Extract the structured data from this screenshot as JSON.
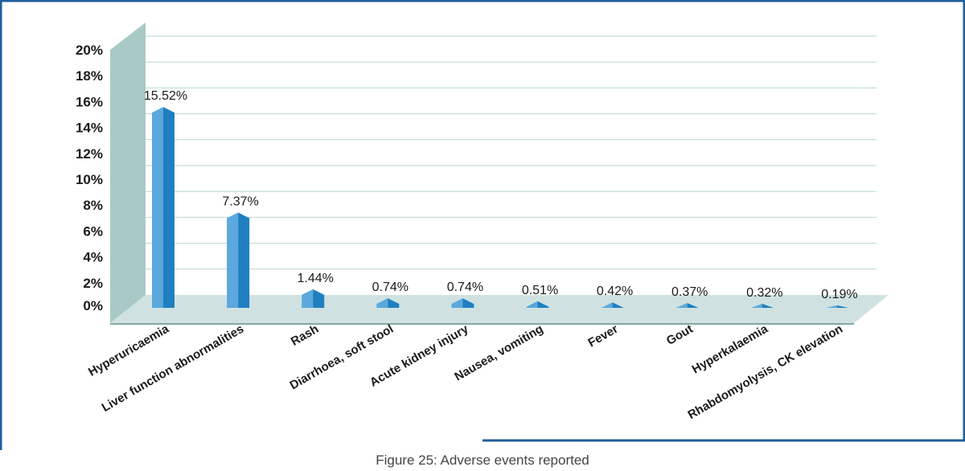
{
  "caption": "Figure 25: Adverse events reported",
  "colors": {
    "frame": "#1f5f9e",
    "wall": "#a9c9c6",
    "floor": "#cfe2e1",
    "wall_dark": "#7fa8a4",
    "grid": "#b8d6d4",
    "bar_light": "#5aa8dd",
    "bar_dark": "#1f7fc1"
  },
  "chart_data": {
    "type": "bar",
    "title": "",
    "xlabel": "",
    "ylabel": "",
    "ylim": [
      0,
      20
    ],
    "yticks": [
      "0%",
      "2%",
      "4%",
      "6%",
      "8%",
      "10%",
      "12%",
      "14%",
      "16%",
      "18%",
      "20%"
    ],
    "categories": [
      "Hyperuricaemia",
      "Liver function abnormalities",
      "Rash",
      "Diarrhoea, soft stool",
      "Acute kidney injury",
      "Nausea, vomiting",
      "Fever",
      "Gout",
      "Hyperkalaemia",
      "Rhabdomyolysis, CK elevation"
    ],
    "values": [
      15.52,
      7.37,
      1.44,
      0.74,
      0.74,
      0.51,
      0.42,
      0.37,
      0.32,
      0.19
    ],
    "data_labels": [
      "15.52%",
      "7.37%",
      "1.44%",
      "0.74%",
      "0.74%",
      "0.51%",
      "0.42%",
      "0.37%",
      "0.32%",
      "0.19%"
    ],
    "grid": true,
    "legend": "none"
  }
}
